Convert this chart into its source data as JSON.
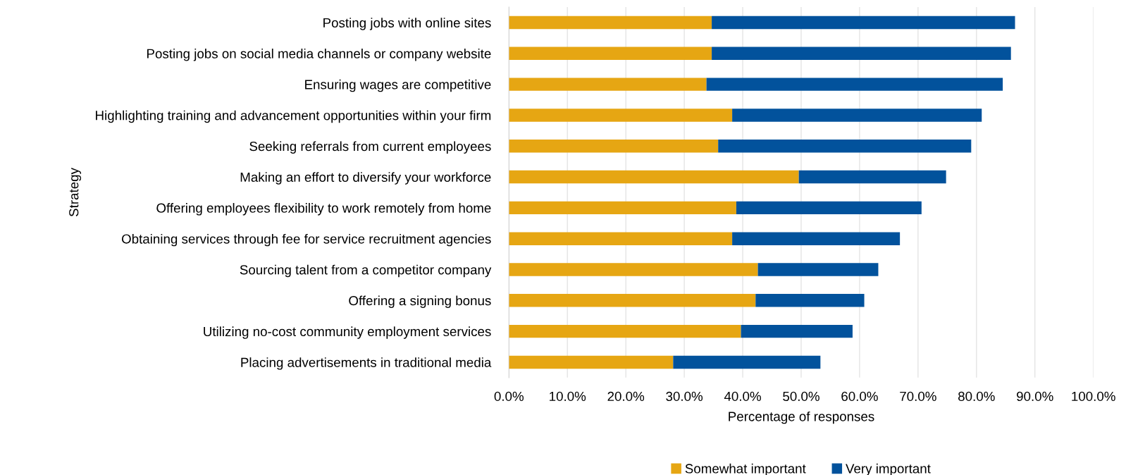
{
  "chart_data": {
    "type": "bar",
    "orientation": "horizontal",
    "stacked": true,
    "xlabel": "Percentage of responses",
    "ylabel": "Strategy",
    "categories": [
      "Posting jobs with online sites",
      "Posting jobs on social media channels or company website",
      "Ensuring wages are competitive",
      "Highlighting training and advancement opportunities within your firm",
      "Seeking referrals from current employees",
      "Making an effort to diversify your workforce",
      "Offering employees flexibility to work remotely from home",
      "Obtaining services through fee for service recruitment agencies",
      "Sourcing talent from a competitor company",
      "Offering a signing bonus",
      "Utilizing no-cost community employment services",
      "Placing advertisements in traditional media"
    ],
    "series": [
      {
        "name": "Somewhat important",
        "color": "#e6a613",
        "values": [
          34.7,
          34.7,
          33.8,
          38.2,
          35.8,
          49.6,
          38.9,
          38.2,
          42.6,
          42.2,
          39.7,
          28.1
        ]
      },
      {
        "name": "Very important",
        "color": "#02529c",
        "values": [
          51.9,
          51.2,
          50.7,
          42.7,
          43.3,
          25.2,
          31.7,
          28.7,
          20.6,
          18.6,
          19.1,
          25.2
        ]
      }
    ],
    "xlim": [
      0,
      100
    ],
    "xticks": [
      {
        "value": 0,
        "label": "0.0%"
      },
      {
        "value": 10,
        "label": "10.0%"
      },
      {
        "value": 20,
        "label": "20.0%"
      },
      {
        "value": 30,
        "label": "30.0%"
      },
      {
        "value": 40,
        "label": "40.0%"
      },
      {
        "value": 50,
        "label": "50.0%"
      },
      {
        "value": 60,
        "label": "60.0%"
      },
      {
        "value": 70,
        "label": "70.0%"
      },
      {
        "value": 80,
        "label": "80.0%"
      },
      {
        "value": 90,
        "label": "90.0%"
      },
      {
        "value": 100,
        "label": "100.0%"
      }
    ],
    "grid": "x",
    "legend": "bottom"
  }
}
